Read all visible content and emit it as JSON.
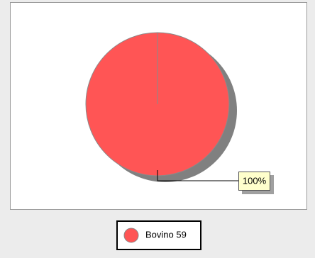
{
  "chart_data": {
    "type": "pie",
    "categories": [
      "Bovino 59"
    ],
    "values": [
      100
    ],
    "value_labels": [
      "100%"
    ],
    "colors": [
      "#ff5555"
    ],
    "legend": "bottom"
  }
}
